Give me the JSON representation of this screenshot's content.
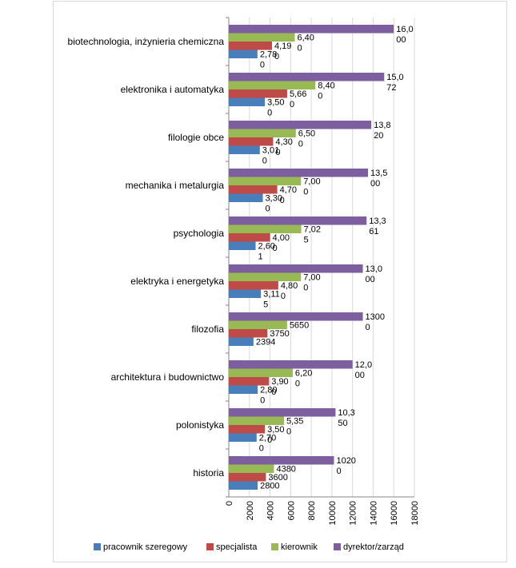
{
  "chart_data": {
    "type": "bar",
    "orientation": "horizontal",
    "title": "",
    "xlabel": "",
    "ylabel": "",
    "xlim": [
      0,
      18000
    ],
    "xticks": [
      "0",
      "2000",
      "4000",
      "6000",
      "8000",
      "10000",
      "12000",
      "14000",
      "16000",
      "18000"
    ],
    "grid": true,
    "legend_position": "bottom",
    "categories": [
      "biotechnologia, inżynieria chemiczna",
      "elektronika i automatyka",
      "filologie obce",
      "mechanika i metalurgia",
      "psychologia",
      "elektryka i energetyka",
      "filozofia",
      "architektura i budownictwo",
      "polonistyka",
      "historia"
    ],
    "series": [
      {
        "name": "pracownik szeregowy",
        "color": "#4a7ebb",
        "values": [
          2780,
          3500,
          3010,
          3300,
          2601,
          3115,
          2394,
          2800,
          2700,
          2800
        ],
        "labels": [
          [
            "2,78",
            "0"
          ],
          [
            "3,50",
            "0"
          ],
          [
            "3,01",
            "0"
          ],
          [
            "3,30",
            "0"
          ],
          [
            "2,60",
            "1"
          ],
          [
            "3,11",
            "5"
          ],
          [
            "2394"
          ],
          [
            "2,80",
            "0"
          ],
          [
            "2,70",
            "0"
          ],
          [
            "2800"
          ]
        ]
      },
      {
        "name": "specjalista",
        "color": "#be4b48",
        "values": [
          4190,
          5660,
          4300,
          4700,
          4000,
          4800,
          3750,
          3900,
          3500,
          3600
        ],
        "labels": [
          [
            "4,19",
            "0"
          ],
          [
            "5,66",
            "0"
          ],
          [
            "4,30",
            "0"
          ],
          [
            "4,70",
            "0"
          ],
          [
            "4,00",
            "0"
          ],
          [
            "4,80",
            "0"
          ],
          [
            "3750"
          ],
          [
            "3,90",
            "0"
          ],
          [
            "3,50",
            "0"
          ],
          [
            "3600"
          ]
        ]
      },
      {
        "name": "kierownik",
        "color": "#98b954",
        "values": [
          6400,
          8400,
          6500,
          7000,
          7025,
          7000,
          5650,
          6200,
          5350,
          4380
        ],
        "labels": [
          [
            "6,40",
            "0"
          ],
          [
            "8,40",
            "0"
          ],
          [
            "6,50",
            "0"
          ],
          [
            "7,00",
            "0"
          ],
          [
            "7,02",
            "5"
          ],
          [
            "7,00",
            "0"
          ],
          [
            "5650"
          ],
          [
            "6,20",
            "0"
          ],
          [
            "5,35",
            "0"
          ],
          [
            "4380"
          ]
        ]
      },
      {
        "name": "dyrektor/zarząd",
        "color": "#7d5fa0",
        "values": [
          16000,
          15072,
          13820,
          13500,
          13361,
          13000,
          13000,
          12000,
          10350,
          10200
        ],
        "labels": [
          [
            "16,0",
            "00"
          ],
          [
            "15,0",
            "72"
          ],
          [
            "13,8",
            "20"
          ],
          [
            "13,5",
            "00"
          ],
          [
            "13,3",
            "61"
          ],
          [
            "13,0",
            "00"
          ],
          [
            "1300",
            "0"
          ],
          [
            "12,0",
            "00"
          ],
          [
            "10,3",
            "50"
          ],
          [
            "1020",
            "0"
          ]
        ]
      }
    ]
  }
}
